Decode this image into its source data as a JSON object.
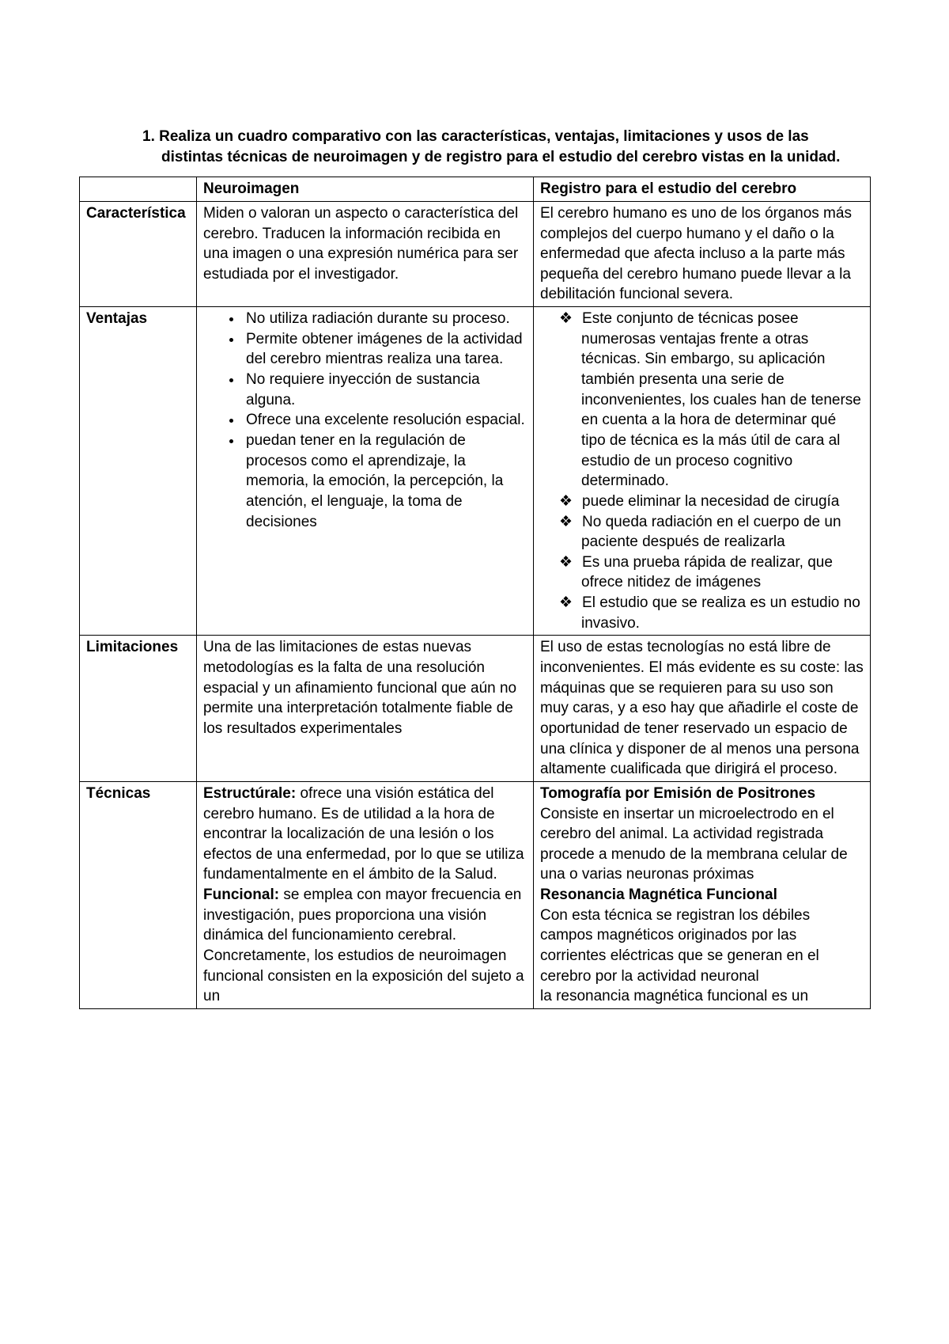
{
  "instruction": "1.  Realiza un cuadro comparativo con las características, ventajas, limitaciones y usos de las distintas técnicas de neuroimagen y de registro para el estudio del cerebro vistas en la unidad.",
  "table": {
    "headers": {
      "col1": "",
      "col2": "Neuroimagen",
      "col3": "Registro para el estudio del cerebro"
    },
    "rows": {
      "caracteristica": {
        "label": "Característica",
        "neuro": "Miden o valoran un aspecto o característica del cerebro. Traducen la información recibida en una imagen o una expresión numérica para ser estudiada por el investigador.",
        "registro": "El cerebro humano es uno de los órganos más complejos del cuerpo humano y el daño o la enfermedad que afecta incluso a la parte más pequeña del cerebro humano puede llevar a la debilitación funcional severa."
      },
      "ventajas": {
        "label": "Ventajas",
        "neuro_items": [
          "No utiliza radiación durante su proceso.",
          "Permite obtener imágenes de la actividad del cerebro mientras realiza una tarea.",
          " No requiere inyección de sustancia alguna.",
          "Ofrece una excelente resolución espacial.",
          "puedan tener en la regulación de procesos como el aprendizaje, la memoria, la emoción, la percepción, la atención, el lenguaje, la toma de decisiones"
        ],
        "registro_items": [
          "Este conjunto de técnicas posee numerosas ventajas frente a otras técnicas. Sin embargo, su aplicación también presenta una serie de inconvenientes, los cuales han de tenerse en cuenta a la hora de determinar qué tipo de técnica es la más útil de cara al estudio de un proceso cognitivo determinado.",
          "puede eliminar la necesidad de cirugía",
          "No queda radiación en el cuerpo de un paciente después de realizarla",
          "Es una prueba rápida de realizar, que ofrece nitidez de imágenes",
          "El estudio que se realiza es un estudio no invasivo."
        ]
      },
      "limitaciones": {
        "label": "Limitaciones",
        "neuro": "Una de las limitaciones de estas nuevas metodologías es la falta de una resolución espacial y un afinamiento funcional que aún no permite una interpretación totalmente fiable de los resultados experimentales",
        "registro": "El uso de estas tecnologías no está libre de inconvenientes. El más evidente es su coste: las máquinas que se requieren para su uso son muy caras, y a eso hay que añadirle el coste de oportunidad de tener reservado un espacio de una clínica y disponer de al menos una persona altamente cualificada que dirigirá el proceso."
      },
      "tecnicas": {
        "label": "Técnicas",
        "neuro": {
          "h1": "Estructúrale:",
          "t1": " ofrece una visión estática del cerebro humano. Es de utilidad a la hora de encontrar la localización de una lesión o los efectos de una enfermedad, por lo que se utiliza fundamentalmente en el ámbito de la Salud.",
          "h2": "Funcional:",
          "t2": " se emplea con mayor frecuencia en investigación, pues proporciona una visión dinámica del funcionamiento cerebral. Concretamente, los estudios de neuroimagen funcional consisten en la exposición del sujeto a un"
        },
        "registro": {
          "h1": "Tomografía por Emisión de Positrones",
          "t1": "Consiste en insertar un microelectrodo en el cerebro del animal. La actividad registrada procede a menudo de la membrana celular de una o varias neuronas próximas",
          "h2": "Resonancia Magnética Funcional",
          "t2": "Con esta técnica se registran los débiles campos magnéticos originados por las corrientes eléctricas que se generan en el cerebro por la actividad neuronal",
          "t3": "la resonancia magnética funcional es un"
        }
      }
    }
  }
}
